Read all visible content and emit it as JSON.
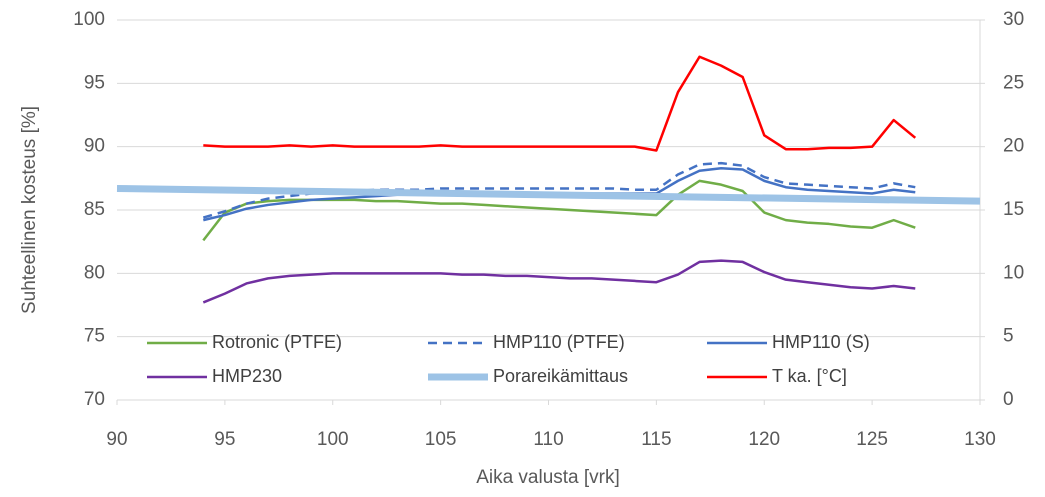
{
  "chart_data": {
    "type": "line",
    "xlabel": "Aika valusta [vrk]",
    "ylabel": "Suhteellinen kosteus [%]",
    "x": [
      94,
      95,
      96,
      97,
      98,
      99,
      100,
      101,
      102,
      103,
      104,
      105,
      106,
      107,
      108,
      109,
      110,
      111,
      112,
      113,
      114,
      115,
      116,
      117,
      118,
      119,
      120,
      121,
      122,
      123,
      124,
      125,
      126,
      127
    ],
    "xlim": [
      90,
      130
    ],
    "xticks": [
      90,
      95,
      100,
      105,
      110,
      115,
      120,
      125,
      130
    ],
    "ylim": [
      70,
      100
    ],
    "yticks": [
      70,
      75,
      80,
      85,
      90,
      95,
      100
    ],
    "y2lim": [
      0,
      30
    ],
    "y2ticks": [
      0,
      5,
      10,
      15,
      20,
      25,
      30
    ],
    "grid": true,
    "legend": "bottom",
    "series": [
      {
        "name": "Rotronic (PTFE)",
        "color": "#70ad47",
        "values": [
          82.6,
          84.8,
          85.5,
          85.7,
          85.8,
          85.8,
          85.8,
          85.8,
          85.7,
          85.7,
          85.6,
          85.5,
          85.5,
          85.4,
          85.3,
          85.2,
          85.1,
          85.0,
          84.9,
          84.8,
          84.7,
          84.6,
          86.2,
          87.3,
          87.0,
          86.5,
          84.8,
          84.2,
          84.0,
          83.9,
          83.7,
          83.6,
          84.2,
          83.6
        ]
      },
      {
        "name": "HMP110 (PTFE)",
        "color": "#4472c4",
        "dash": true,
        "values": [
          84.4,
          84.9,
          85.5,
          85.9,
          86.1,
          86.3,
          86.4,
          86.5,
          86.6,
          86.6,
          86.6,
          86.7,
          86.7,
          86.7,
          86.7,
          86.7,
          86.7,
          86.7,
          86.7,
          86.7,
          86.6,
          86.6,
          87.8,
          88.6,
          88.7,
          88.5,
          87.6,
          87.1,
          87.0,
          86.9,
          86.8,
          86.7,
          87.1,
          86.8
        ]
      },
      {
        "name": "HMP110 (S)",
        "color": "#4472c4",
        "values": [
          84.2,
          84.6,
          85.1,
          85.4,
          85.6,
          85.8,
          85.9,
          86.0,
          86.1,
          86.2,
          86.3,
          86.3,
          86.3,
          86.3,
          86.3,
          86.3,
          86.3,
          86.3,
          86.3,
          86.3,
          86.3,
          86.3,
          87.3,
          88.1,
          88.3,
          88.2,
          87.3,
          86.8,
          86.6,
          86.5,
          86.4,
          86.3,
          86.6,
          86.4
        ]
      },
      {
        "name": "HMP230",
        "color": "#7030a0",
        "values": [
          77.7,
          78.4,
          79.2,
          79.6,
          79.8,
          79.9,
          80.0,
          80.0,
          80.0,
          80.0,
          80.0,
          80.0,
          79.9,
          79.9,
          79.8,
          79.8,
          79.7,
          79.6,
          79.6,
          79.5,
          79.4,
          79.3,
          79.9,
          80.9,
          81.0,
          80.9,
          80.1,
          79.5,
          79.3,
          79.1,
          78.9,
          78.8,
          79.0,
          78.8
        ]
      },
      {
        "name": "Porareikämittaus",
        "color": "#9dc3e6",
        "width": 7,
        "x": [
          90,
          130
        ],
        "values": [
          86.7,
          85.7
        ]
      },
      {
        "name": "T ka. [°C]",
        "color": "#ff0000",
        "axis": "y2",
        "values": [
          20.1,
          20.0,
          20.0,
          20.0,
          20.1,
          20.0,
          20.1,
          20.0,
          20.0,
          20.0,
          20.0,
          20.1,
          20.0,
          20.0,
          20.0,
          20.0,
          20.0,
          20.0,
          20.0,
          20.0,
          20.0,
          19.7,
          24.3,
          27.1,
          26.4,
          25.5,
          20.9,
          19.8,
          19.8,
          19.9,
          19.9,
          20.0,
          22.1,
          20.7
        ]
      }
    ]
  }
}
